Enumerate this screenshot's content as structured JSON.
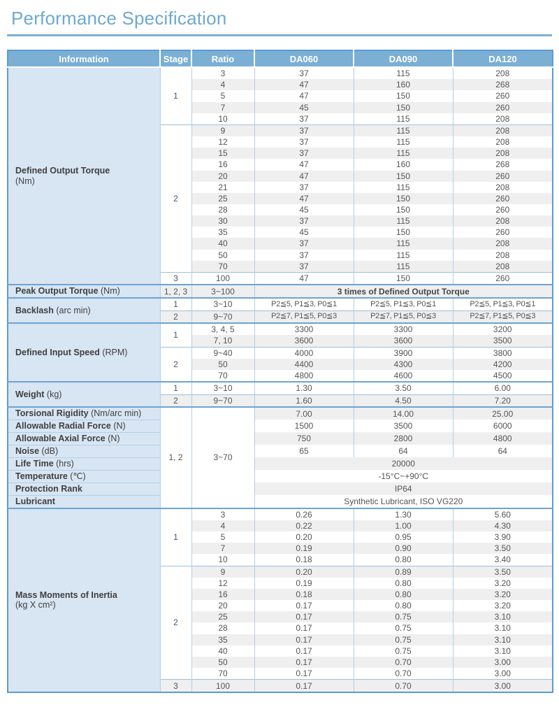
{
  "title": "Performance Specification",
  "colors": {
    "title": "#6FA9CF",
    "rule": "#7BAFD9",
    "header_bg": "#7BAFD4",
    "header_text": "#FFFFFF",
    "info_bg": "#D8E5F3",
    "stripe": "#EFEFEF",
    "border_outer": "#5B9BD5",
    "border_sec": "#6BA4D3",
    "border_group": "#9BC0DF",
    "border_col": "#B3CFE8",
    "text_data": "#555555",
    "text_label": "#3F3F3F",
    "merged_bold_text": "#454545"
  },
  "header": {
    "columns": [
      "Information",
      "Stage",
      "Ratio",
      "DA060",
      "DA090",
      "DA120"
    ]
  },
  "sections": [
    {
      "id": "defined-output-torque",
      "label_main": "Defined Output Torque",
      "label_sub": "(Nm)",
      "two_line": true,
      "stripe_start": 0,
      "groups": [
        {
          "stage": "1",
          "rows": [
            [
              "3",
              "37",
              "115",
              "208"
            ],
            [
              "4",
              "47",
              "160",
              "268"
            ],
            [
              "5",
              "47",
              "150",
              "260"
            ],
            [
              "7",
              "45",
              "150",
              "260"
            ],
            [
              "10",
              "37",
              "115",
              "208"
            ]
          ]
        },
        {
          "stage": "2",
          "rows": [
            [
              "9",
              "37",
              "115",
              "208"
            ],
            [
              "12",
              "37",
              "115",
              "208"
            ],
            [
              "15",
              "37",
              "115",
              "208"
            ],
            [
              "16",
              "47",
              "160",
              "268"
            ],
            [
              "20",
              "47",
              "150",
              "260"
            ],
            [
              "21",
              "37",
              "115",
              "208"
            ],
            [
              "25",
              "47",
              "150",
              "260"
            ],
            [
              "28",
              "45",
              "150",
              "260"
            ],
            [
              "30",
              "37",
              "115",
              "208"
            ],
            [
              "35",
              "45",
              "150",
              "260"
            ],
            [
              "40",
              "37",
              "115",
              "208"
            ],
            [
              "50",
              "37",
              "115",
              "208"
            ],
            [
              "70",
              "37",
              "115",
              "208"
            ]
          ]
        },
        {
          "stage": "3",
          "rows": [
            [
              "100",
              "47",
              "150",
              "260"
            ]
          ]
        }
      ]
    },
    {
      "id": "peak-output-torque",
      "label_main": "Peak Output Torque",
      "label_sub": "(Nm)",
      "two_line": false,
      "stripe_start": 1,
      "groups": [
        {
          "stage": "1, 2, 3",
          "rows": [
            {
              "ratio": "3~100",
              "merged": "3 times of Defined Output Torque",
              "bold": true
            }
          ]
        }
      ]
    },
    {
      "id": "backlash",
      "label_main": "Backlash",
      "label_sub": "(arc min)",
      "two_line": false,
      "stripe_start": 0,
      "small": true,
      "groups": [
        {
          "stage": "1",
          "rows": [
            [
              "3~10",
              "P2≦5, P1≦3, P0≦1",
              "P2≦5, P1≦3, P0≦1",
              "P2≦5, P1≦3, P0≦1"
            ]
          ]
        },
        {
          "stage": "2",
          "rows": [
            [
              "9~70",
              "P2≦7, P1≦5, P0≦3",
              "P2≦7, P1≦5, P0≦3",
              "P2≦7, P1≦5, P0≦3"
            ]
          ]
        }
      ]
    },
    {
      "id": "defined-input-speed",
      "label_main": "Defined Input Speed",
      "label_sub": "(RPM)",
      "two_line": false,
      "stripe_start": 0,
      "groups": [
        {
          "stage": "1",
          "rows": [
            [
              "3, 4, 5",
              "3300",
              "3300",
              "3200"
            ],
            [
              "7, 10",
              "3600",
              "3600",
              "3500"
            ]
          ]
        },
        {
          "stage": "2",
          "rows": [
            [
              "9~40",
              "4000",
              "3900",
              "3800"
            ],
            [
              "50",
              "4400",
              "4300",
              "4200"
            ],
            [
              "70",
              "4800",
              "4600",
              "4500"
            ]
          ]
        }
      ]
    },
    {
      "id": "weight",
      "label_main": "Weight",
      "label_sub": "(kg)",
      "two_line": false,
      "stripe_start": 0,
      "groups": [
        {
          "stage": "1",
          "rows": [
            [
              "3~10",
              "1.30",
              "3.50",
              "6.00"
            ]
          ]
        },
        {
          "stage": "2",
          "rows": [
            [
              "9~70",
              "1.60",
              "4.50",
              "7.20"
            ]
          ]
        }
      ]
    },
    {
      "id": "common-properties",
      "type": "row_labels",
      "stripe_start": 1,
      "stage": "1, 2",
      "ratio": "3~70",
      "rows": [
        {
          "label_main": "Torsional Rigidity",
          "label_sub": "(Nm/arc min)",
          "values": [
            "7.00",
            "14.00",
            "25.00"
          ]
        },
        {
          "label_main": "Allowable Radial Force",
          "label_sub": "(N)",
          "values": [
            "1500",
            "3500",
            "6000"
          ]
        },
        {
          "label_main": "Allowable Axial Force",
          "label_sub": "(N)",
          "values": [
            "750",
            "2800",
            "4800"
          ]
        },
        {
          "label_main": "Noise",
          "label_sub": "(dB)",
          "values": [
            "65",
            "64",
            "64"
          ]
        },
        {
          "label_main": "Life Time",
          "label_sub": "(hrs)",
          "merged": "20000"
        },
        {
          "label_main": "Temperature",
          "label_sub": "(℃)",
          "merged": "-15°C~+90°C"
        },
        {
          "label_main": "Protection Rank",
          "label_sub": "",
          "merged": "IP64"
        },
        {
          "label_main": "Lubricant",
          "label_sub": "",
          "merged": "Synthetic Lubricant, ISO VG220"
        }
      ]
    },
    {
      "id": "mass-moments-of-inertia",
      "label_main": "Mass Moments of Inertia",
      "label_sub": "(kg X cm²)",
      "two_line": true,
      "stripe_start": 0,
      "groups": [
        {
          "stage": "1",
          "rows": [
            [
              "3",
              "0.26",
              "1.30",
              "5.60"
            ],
            [
              "4",
              "0.22",
              "1.00",
              "4.30"
            ],
            [
              "5",
              "0.20",
              "0.95",
              "3.90"
            ],
            [
              "7",
              "0.19",
              "0.90",
              "3.50"
            ],
            [
              "10",
              "0.18",
              "0.80",
              "3.40"
            ]
          ]
        },
        {
          "stage": "2",
          "rows": [
            [
              "9",
              "0.20",
              "0.89",
              "3.50"
            ],
            [
              "12",
              "0.19",
              "0.80",
              "3.20"
            ],
            [
              "16",
              "0.18",
              "0.80",
              "3.20"
            ],
            [
              "20",
              "0.17",
              "0.80",
              "3.20"
            ],
            [
              "25",
              "0.17",
              "0.75",
              "3.10"
            ],
            [
              "28",
              "0.17",
              "0.75",
              "3.10"
            ],
            [
              "35",
              "0.17",
              "0.75",
              "3.10"
            ],
            [
              "40",
              "0.17",
              "0.75",
              "3.10"
            ],
            [
              "50",
              "0.17",
              "0.70",
              "3.00"
            ],
            [
              "70",
              "0.17",
              "0.70",
              "3.00"
            ]
          ]
        },
        {
          "stage": "3",
          "rows": [
            [
              "100",
              "0.17",
              "0.70",
              "3.00"
            ]
          ]
        }
      ]
    }
  ]
}
